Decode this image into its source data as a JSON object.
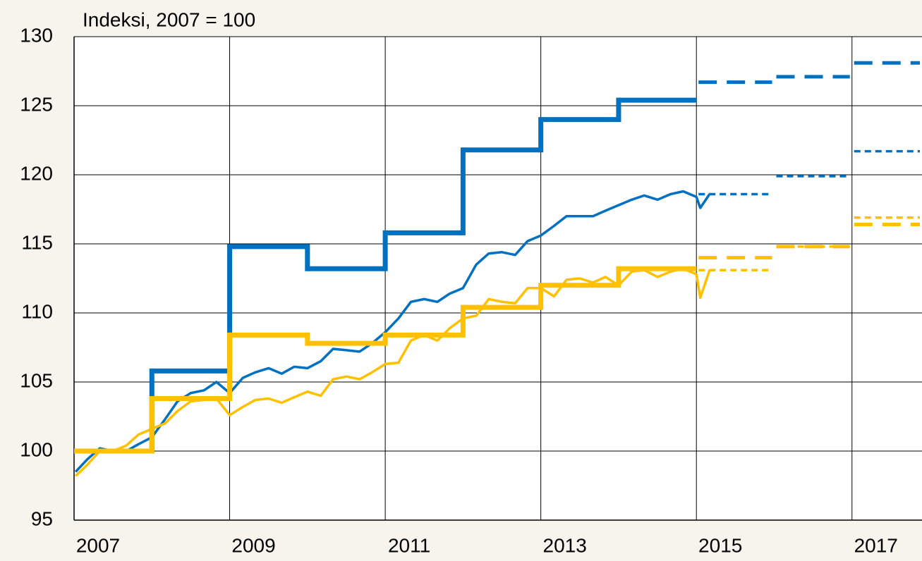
{
  "chart_data": {
    "type": "line",
    "title": "Indeksi, 2007 = 100",
    "xlim": [
      2007,
      2017.9
    ],
    "xticks": [
      2007,
      2009,
      2011,
      2013,
      2015,
      2017
    ],
    "ylim": [
      95,
      130
    ],
    "yticks": [
      95,
      100,
      105,
      110,
      115,
      120,
      125,
      130
    ],
    "grid": true,
    "series": [
      {
        "color": "#0070c0",
        "style": "step",
        "dash": "solid",
        "weight": "thick",
        "x": [
          2007,
          2008,
          2009,
          2010,
          2011,
          2012,
          2013,
          2014
        ],
        "values": [
          100,
          105.8,
          114.8,
          113.2,
          115.8,
          121.8,
          124.0,
          125.4
        ]
      },
      {
        "color": "#0070c0",
        "style": "step",
        "dash": "dashed",
        "weight": "thick",
        "x": [
          2015,
          2016,
          2017
        ],
        "values": [
          126.7,
          127.1,
          128.1
        ]
      },
      {
        "color": "#0070c0",
        "style": "step",
        "dash": "dotted",
        "weight": "thin",
        "x": [
          2015,
          2016,
          2017
        ],
        "values": [
          118.6,
          119.9,
          121.7
        ]
      },
      {
        "color": "#ffc000",
        "style": "step",
        "dash": "solid",
        "weight": "thick",
        "x": [
          2007,
          2008,
          2009,
          2010,
          2011,
          2012,
          2013,
          2014
        ],
        "values": [
          100,
          103.8,
          108.4,
          107.8,
          108.4,
          110.4,
          112.0,
          113.2
        ]
      },
      {
        "color": "#ffc000",
        "style": "step",
        "dash": "dashed",
        "weight": "thick",
        "x": [
          2015,
          2016,
          2017
        ],
        "values": [
          114.0,
          114.8,
          116.4
        ]
      },
      {
        "color": "#ffc000",
        "style": "step",
        "dash": "dotted",
        "weight": "thin",
        "x": [
          2015,
          2016,
          2017
        ],
        "values": [
          113.1,
          114.8,
          116.9
        ]
      },
      {
        "color": "#0070c0",
        "style": "line",
        "dash": "solid",
        "weight": "thin",
        "x": [
          2007.02,
          2007.17,
          2007.33,
          2007.5,
          2007.67,
          2007.83,
          2008.0,
          2008.17,
          2008.33,
          2008.5,
          2008.67,
          2008.83,
          2009.0,
          2009.17,
          2009.33,
          2009.5,
          2009.67,
          2009.83,
          2010.0,
          2010.17,
          2010.33,
          2010.5,
          2010.67,
          2010.83,
          2011.0,
          2011.17,
          2011.33,
          2011.5,
          2011.67,
          2011.83,
          2012.0,
          2012.17,
          2012.33,
          2012.5,
          2012.67,
          2012.83,
          2013.0,
          2013.17,
          2013.33,
          2013.5,
          2013.67,
          2013.83,
          2014.0,
          2014.17,
          2014.33,
          2014.5,
          2014.67,
          2014.83,
          2015.0,
          2015.05,
          2015.17
        ],
        "values": [
          98.5,
          99.4,
          100.2,
          100.0,
          100.0,
          100.5,
          101.0,
          102.3,
          103.6,
          104.2,
          104.4,
          105.0,
          104.2,
          105.3,
          105.7,
          106.0,
          105.6,
          106.1,
          106.0,
          106.5,
          107.4,
          107.3,
          107.2,
          107.8,
          108.6,
          109.6,
          110.8,
          111.0,
          110.8,
          111.4,
          111.8,
          113.5,
          114.3,
          114.4,
          114.2,
          115.2,
          115.6,
          116.3,
          117.0,
          117.0,
          117.0,
          117.4,
          117.8,
          118.2,
          118.5,
          118.2,
          118.6,
          118.8,
          118.4,
          117.6,
          118.6
        ]
      },
      {
        "color": "#ffc000",
        "style": "line",
        "dash": "solid",
        "weight": "thin",
        "x": [
          2007.02,
          2007.17,
          2007.33,
          2007.5,
          2007.67,
          2007.83,
          2008.0,
          2008.17,
          2008.33,
          2008.5,
          2008.67,
          2008.83,
          2009.0,
          2009.17,
          2009.33,
          2009.5,
          2009.67,
          2009.83,
          2010.0,
          2010.17,
          2010.33,
          2010.5,
          2010.67,
          2010.83,
          2011.0,
          2011.17,
          2011.33,
          2011.5,
          2011.67,
          2011.83,
          2012.0,
          2012.17,
          2012.33,
          2012.5,
          2012.67,
          2012.83,
          2013.0,
          2013.17,
          2013.33,
          2013.5,
          2013.67,
          2013.83,
          2014.0,
          2014.17,
          2014.33,
          2014.5,
          2014.67,
          2014.83,
          2015.0,
          2015.05,
          2015.17
        ],
        "values": [
          98.2,
          99.0,
          100.0,
          100.0,
          100.4,
          101.2,
          101.6,
          102.0,
          102.9,
          103.6,
          103.7,
          103.8,
          102.6,
          103.2,
          103.7,
          103.8,
          103.5,
          103.9,
          104.3,
          104.0,
          105.2,
          105.4,
          105.2,
          105.7,
          106.3,
          106.4,
          108.0,
          108.4,
          108.0,
          108.9,
          109.6,
          109.8,
          111.0,
          110.8,
          110.7,
          111.8,
          111.8,
          111.2,
          112.4,
          112.5,
          112.2,
          112.6,
          112.0,
          113.0,
          113.1,
          112.6,
          113.0,
          113.2,
          112.8,
          111.1,
          113.1
        ]
      }
    ]
  }
}
